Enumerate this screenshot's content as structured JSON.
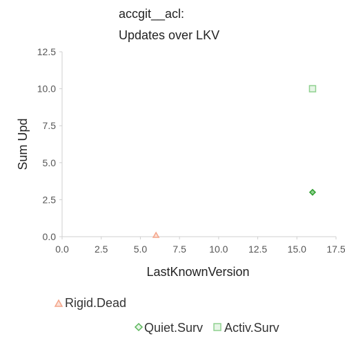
{
  "chart_data": {
    "type": "scatter",
    "title": [
      "accgit__acl:",
      "Updates over LKV"
    ],
    "xlabel": "LastKnownVersion",
    "ylabel": "Sum Upd",
    "xlim": [
      0,
      17.5
    ],
    "ylim": [
      0,
      12.5
    ],
    "xticks": [
      "0.0",
      "2.5",
      "5.0",
      "7.5",
      "10.0",
      "12.5",
      "15.0",
      "17.5"
    ],
    "yticks": [
      "0.0",
      "2.5",
      "5.0",
      "7.5",
      "10.0",
      "12.5"
    ],
    "grid": false,
    "legend_position": "bottom",
    "series": [
      {
        "name": "Rigid.Dead",
        "marker": "triangle",
        "color": "#f4a58a",
        "points": [
          {
            "x": 6,
            "y": 0
          }
        ]
      },
      {
        "name": "Quiet.Surv",
        "marker": "diamond",
        "color": "#2e9e2e",
        "points": [
          {
            "x": 16,
            "y": 3
          }
        ]
      },
      {
        "name": "Activ.Surv",
        "marker": "square",
        "color": "#8fd18f",
        "points": [
          {
            "x": 16,
            "y": 10
          }
        ]
      }
    ]
  }
}
